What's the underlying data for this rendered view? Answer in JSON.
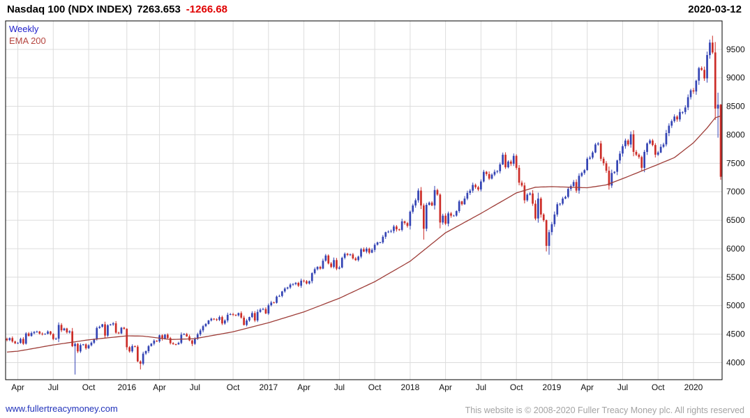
{
  "header": {
    "title": "Nasdaq 100 (NDX INDEX)",
    "last_price": "7263.653",
    "change": "-1266.68",
    "date": "2020-03-12"
  },
  "legend": {
    "series_label": "Weekly",
    "ema_label": "EMA 200"
  },
  "footer": {
    "site_link": "www.fullertreacymoney.com",
    "copyright": "This website is © 2008-2020 Fuller Treacy Money plc. All rights reserved"
  },
  "chart_data": {
    "type": "candlestick",
    "instrument": "Nasdaq 100 (NDX INDEX)",
    "interval": "Weekly",
    "overlay": "EMA 200",
    "last_price": 7263.653,
    "change": -1266.68,
    "as_of": "2020-03-12",
    "ylim": [
      3700,
      10000
    ],
    "y_ticks": [
      4000,
      4500,
      5000,
      5500,
      6000,
      6500,
      7000,
      7500,
      8000,
      8500,
      9000,
      9500
    ],
    "x_ticks": [
      {
        "label": "Apr",
        "week": 4
      },
      {
        "label": "Jul",
        "week": 17
      },
      {
        "label": "Oct",
        "week": 30
      },
      {
        "label": "2016",
        "week": 44
      },
      {
        "label": "Apr",
        "week": 56
      },
      {
        "label": "Jul",
        "week": 69
      },
      {
        "label": "Oct",
        "week": 83
      },
      {
        "label": "2017",
        "week": 96
      },
      {
        "label": "Apr",
        "week": 109
      },
      {
        "label": "Jul",
        "week": 122
      },
      {
        "label": "Oct",
        "week": 135
      },
      {
        "label": "2018",
        "week": 148
      },
      {
        "label": "Apr",
        "week": 161
      },
      {
        "label": "Jul",
        "week": 174
      },
      {
        "label": "Oct",
        "week": 187
      },
      {
        "label": "2019",
        "week": 200
      },
      {
        "label": "Apr",
        "week": 213
      },
      {
        "label": "Jul",
        "week": 226
      },
      {
        "label": "Oct",
        "week": 239
      },
      {
        "label": "2020",
        "week": 252
      }
    ],
    "weekly_closes": [
      4395,
      4430,
      4370,
      4340,
      4345,
      4416,
      4332,
      4512,
      4468,
      4518,
      4537,
      4545,
      4509,
      4500,
      4506,
      4546,
      4501,
      4413,
      4420,
      4662,
      4568,
      4599,
      4530,
      4549,
      4288,
      4330,
      4197,
      4308,
      4320,
      4252,
      4304,
      4349,
      4416,
      4609,
      4630,
      4673,
      4475,
      4657,
      4670,
      4690,
      4526,
      4514,
      4613,
      4593,
      4270,
      4197,
      4288,
      4280,
      4021,
      3981,
      4158,
      4201,
      4290,
      4332,
      4385,
      4372,
      4479,
      4418,
      4490,
      4430,
      4341,
      4324,
      4322,
      4346,
      4490,
      4500,
      4460,
      4390,
      4330,
      4417,
      4497,
      4565,
      4640,
      4680,
      4740,
      4770,
      4760,
      4750,
      4800,
      4687,
      4740,
      4840,
      4850,
      4840,
      4830,
      4870,
      4790,
      4660,
      4740,
      4800,
      4870,
      4740,
      4890,
      4930,
      4940,
      4863,
      5007,
      5055,
      5050,
      5160,
      5170,
      5250,
      5300,
      5320,
      5370,
      5380,
      5400,
      5350,
      5440,
      5430,
      5390,
      5430,
      5570,
      5640,
      5680,
      5650,
      5790,
      5880,
      5740,
      5680,
      5800,
      5650,
      5670,
      5840,
      5910,
      5890,
      5900,
      5830,
      5800,
      5860,
      5990,
      5950,
      6000,
      5930,
      5980,
      6070,
      6110,
      6110,
      6210,
      6290,
      6300,
      6310,
      6390,
      6340,
      6330,
      6480,
      6450,
      6400,
      6650,
      6760,
      6850,
      7020,
      6760,
      6350,
      6770,
      6810,
      6760,
      7030,
      6950,
      6460,
      6580,
      6440,
      6620,
      6580,
      6580,
      6660,
      6830,
      6780,
      6880,
      6980,
      7020,
      7120,
      7080,
      7040,
      7180,
      7350,
      7310,
      7230,
      7300,
      7350,
      7360,
      7480,
      7650,
      7430,
      7530,
      7490,
      7630,
      7420,
      7160,
      7110,
      6850,
      6950,
      6970,
      6790,
      6530,
      6880,
      6600,
      6500,
      6050,
      6290,
      6430,
      6600,
      6780,
      6790,
      6880,
      6910,
      7050,
      7100,
      7170,
      7020,
      7280,
      7330,
      7380,
      7580,
      7600,
      7690,
      7830,
      7850,
      7580,
      7500,
      7370,
      7110,
      7330,
      7350,
      7550,
      7670,
      7800,
      7900,
      7830,
      8010,
      7700,
      7650,
      7610,
      7420,
      7700,
      7850,
      7900,
      7820,
      7650,
      7690,
      7790,
      7830,
      8030,
      8160,
      8240,
      8320,
      8270,
      8400,
      8400,
      8480,
      8660,
      8780,
      8760,
      8950,
      9170,
      9140,
      8990,
      9400,
      9620,
      9446,
      8461,
      8530,
      7263.65
    ],
    "wick_overrides": {
      "25": {
        "low": 3790
      },
      "49": {
        "low": 3880
      },
      "68": {
        "low": 4290
      },
      "153": {
        "low": 6160
      },
      "199": {
        "low": 5895
      },
      "259": {
        "high": 9740
      },
      "260": {
        "low": 8260
      },
      "261": {
        "low": 7950,
        "high": 8740
      },
      "262": {
        "low": 7210,
        "high": 8540
      }
    },
    "ema200_anchors": [
      [
        0,
        4185
      ],
      [
        4,
        4200
      ],
      [
        17,
        4310
      ],
      [
        30,
        4400
      ],
      [
        44,
        4470
      ],
      [
        50,
        4465
      ],
      [
        60,
        4405
      ],
      [
        69,
        4420
      ],
      [
        83,
        4540
      ],
      [
        96,
        4700
      ],
      [
        109,
        4890
      ],
      [
        122,
        5130
      ],
      [
        135,
        5420
      ],
      [
        148,
        5780
      ],
      [
        161,
        6280
      ],
      [
        174,
        6620
      ],
      [
        187,
        6980
      ],
      [
        194,
        7080
      ],
      [
        200,
        7090
      ],
      [
        213,
        7070
      ],
      [
        220,
        7120
      ],
      [
        226,
        7230
      ],
      [
        239,
        7480
      ],
      [
        245,
        7600
      ],
      [
        252,
        7860
      ],
      [
        257,
        8120
      ],
      [
        260,
        8300
      ],
      [
        262,
        8330
      ]
    ],
    "colors": {
      "up": "#3444b4",
      "down": "#cc2d28",
      "ema": "#9e3d38",
      "grid": "#dcdcdc",
      "border": "#000000",
      "axis_text": "#111111",
      "change_text": "#e00000",
      "legend_interval": "#2222cc",
      "legend_ema": "#b5453f",
      "link": "#2233bb",
      "copyright_text": "#a3a3a3"
    }
  }
}
